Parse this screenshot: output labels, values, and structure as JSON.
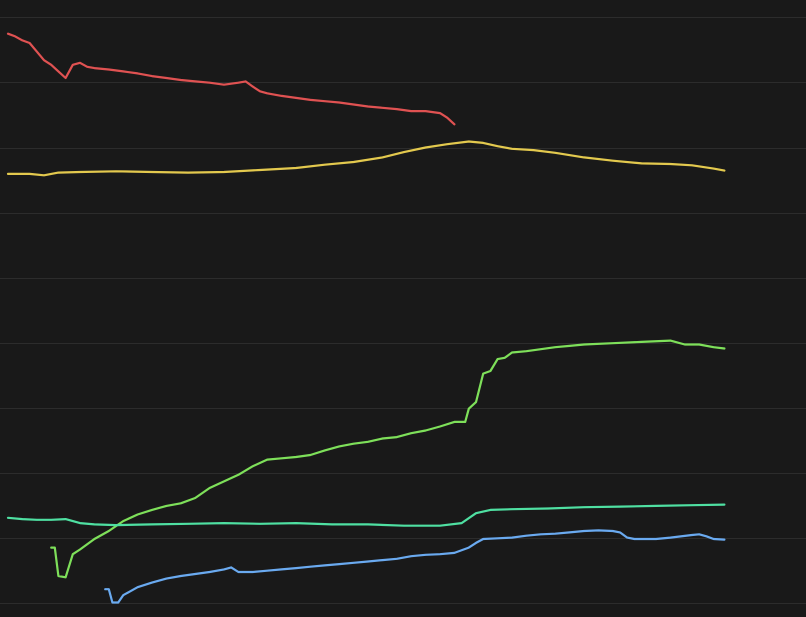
{
  "chart_data": {
    "type": "line",
    "background": "#191919",
    "grid": true,
    "grid_color": "#2c2c2c",
    "legend": false,
    "title": "",
    "xlabel": "",
    "ylabel": "",
    "xlim": [
      0,
      100
    ],
    "ylim": [
      0,
      9.3
    ],
    "series": [
      {
        "color": "#e05252",
        "points": [
          [
            0,
            8.82
          ],
          [
            1,
            8.78
          ],
          [
            2,
            8.72
          ],
          [
            3,
            8.68
          ],
          [
            4,
            8.55
          ],
          [
            5,
            8.42
          ],
          [
            6,
            8.35
          ],
          [
            7,
            8.25
          ],
          [
            8,
            8.15
          ],
          [
            9,
            8.35
          ],
          [
            10,
            8.38
          ],
          [
            11,
            8.32
          ],
          [
            12,
            8.3
          ],
          [
            14,
            8.28
          ],
          [
            16,
            8.25
          ],
          [
            18,
            8.22
          ],
          [
            20,
            8.18
          ],
          [
            22,
            8.15
          ],
          [
            24,
            8.12
          ],
          [
            26,
            8.1
          ],
          [
            28,
            8.08
          ],
          [
            30,
            8.05
          ],
          [
            32,
            8.08
          ],
          [
            33,
            8.1
          ],
          [
            34,
            8.02
          ],
          [
            35,
            7.95
          ],
          [
            36,
            7.92
          ],
          [
            38,
            7.88
          ],
          [
            40,
            7.85
          ],
          [
            42,
            7.82
          ],
          [
            44,
            7.8
          ],
          [
            46,
            7.78
          ],
          [
            48,
            7.75
          ],
          [
            50,
            7.72
          ],
          [
            52,
            7.7
          ],
          [
            54,
            7.68
          ],
          [
            56,
            7.65
          ],
          [
            58,
            7.65
          ],
          [
            60,
            7.62
          ],
          [
            61,
            7.55
          ],
          [
            62,
            7.45
          ]
        ]
      },
      {
        "color": "#e3c94e",
        "points": [
          [
            0,
            6.7
          ],
          [
            3,
            6.7
          ],
          [
            5,
            6.68
          ],
          [
            7,
            6.72
          ],
          [
            10,
            6.73
          ],
          [
            15,
            6.74
          ],
          [
            20,
            6.73
          ],
          [
            25,
            6.72
          ],
          [
            30,
            6.73
          ],
          [
            35,
            6.76
          ],
          [
            40,
            6.79
          ],
          [
            44,
            6.84
          ],
          [
            48,
            6.88
          ],
          [
            52,
            6.95
          ],
          [
            55,
            7.03
          ],
          [
            58,
            7.1
          ],
          [
            61,
            7.15
          ],
          [
            64,
            7.19
          ],
          [
            66,
            7.17
          ],
          [
            68,
            7.12
          ],
          [
            70,
            7.08
          ],
          [
            73,
            7.06
          ],
          [
            76,
            7.02
          ],
          [
            80,
            6.95
          ],
          [
            84,
            6.9
          ],
          [
            88,
            6.86
          ],
          [
            92,
            6.85
          ],
          [
            95,
            6.83
          ],
          [
            98,
            6.78
          ],
          [
            99.5,
            6.75
          ]
        ]
      },
      {
        "color": "#7ee05a",
        "points": [
          [
            6,
            1.05
          ],
          [
            6.5,
            1.05
          ],
          [
            7,
            0.62
          ],
          [
            8,
            0.6
          ],
          [
            9,
            0.95
          ],
          [
            10,
            1.02
          ],
          [
            12,
            1.18
          ],
          [
            14,
            1.3
          ],
          [
            16,
            1.45
          ],
          [
            18,
            1.55
          ],
          [
            20,
            1.62
          ],
          [
            22,
            1.68
          ],
          [
            24,
            1.72
          ],
          [
            26,
            1.8
          ],
          [
            28,
            1.95
          ],
          [
            30,
            2.05
          ],
          [
            32,
            2.15
          ],
          [
            34,
            2.28
          ],
          [
            36,
            2.38
          ],
          [
            38,
            2.4
          ],
          [
            40,
            2.42
          ],
          [
            42,
            2.45
          ],
          [
            44,
            2.52
          ],
          [
            46,
            2.58
          ],
          [
            48,
            2.62
          ],
          [
            50,
            2.65
          ],
          [
            52,
            2.7
          ],
          [
            54,
            2.72
          ],
          [
            56,
            2.78
          ],
          [
            58,
            2.82
          ],
          [
            60,
            2.88
          ],
          [
            62,
            2.95
          ],
          [
            63.5,
            2.95
          ],
          [
            64,
            3.15
          ],
          [
            65,
            3.25
          ],
          [
            66,
            3.68
          ],
          [
            67,
            3.72
          ],
          [
            68,
            3.9
          ],
          [
            69,
            3.92
          ],
          [
            70,
            4.0
          ],
          [
            72,
            4.02
          ],
          [
            74,
            4.05
          ],
          [
            76,
            4.08
          ],
          [
            78,
            4.1
          ],
          [
            80,
            4.12
          ],
          [
            84,
            4.14
          ],
          [
            88,
            4.16
          ],
          [
            92,
            4.18
          ],
          [
            94,
            4.12
          ],
          [
            96,
            4.12
          ],
          [
            98,
            4.08
          ],
          [
            99.5,
            4.06
          ]
        ]
      },
      {
        "color": "#4fe0a2",
        "points": [
          [
            0,
            1.5
          ],
          [
            2,
            1.48
          ],
          [
            4,
            1.47
          ],
          [
            6,
            1.47
          ],
          [
            8,
            1.48
          ],
          [
            9,
            1.45
          ],
          [
            10,
            1.42
          ],
          [
            12,
            1.4
          ],
          [
            15,
            1.39
          ],
          [
            20,
            1.4
          ],
          [
            25,
            1.41
          ],
          [
            30,
            1.42
          ],
          [
            35,
            1.41
          ],
          [
            40,
            1.42
          ],
          [
            45,
            1.4
          ],
          [
            50,
            1.4
          ],
          [
            55,
            1.38
          ],
          [
            60,
            1.38
          ],
          [
            63,
            1.42
          ],
          [
            65,
            1.57
          ],
          [
            67,
            1.62
          ],
          [
            70,
            1.63
          ],
          [
            75,
            1.64
          ],
          [
            80,
            1.66
          ],
          [
            85,
            1.67
          ],
          [
            90,
            1.68
          ],
          [
            95,
            1.69
          ],
          [
            99.5,
            1.7
          ]
        ]
      },
      {
        "color": "#6aaaf0",
        "points": [
          [
            13.5,
            0.42
          ],
          [
            14,
            0.42
          ],
          [
            14.5,
            0.22
          ],
          [
            15.3,
            0.22
          ],
          [
            16,
            0.33
          ],
          [
            18,
            0.45
          ],
          [
            20,
            0.52
          ],
          [
            22,
            0.58
          ],
          [
            24,
            0.62
          ],
          [
            26,
            0.65
          ],
          [
            28,
            0.68
          ],
          [
            30,
            0.72
          ],
          [
            31,
            0.75
          ],
          [
            32,
            0.68
          ],
          [
            34,
            0.68
          ],
          [
            36,
            0.7
          ],
          [
            38,
            0.72
          ],
          [
            40,
            0.74
          ],
          [
            42,
            0.76
          ],
          [
            44,
            0.78
          ],
          [
            46,
            0.8
          ],
          [
            48,
            0.82
          ],
          [
            50,
            0.84
          ],
          [
            52,
            0.86
          ],
          [
            54,
            0.88
          ],
          [
            56,
            0.92
          ],
          [
            58,
            0.94
          ],
          [
            60,
            0.95
          ],
          [
            62,
            0.97
          ],
          [
            64,
            1.05
          ],
          [
            65,
            1.12
          ],
          [
            66,
            1.18
          ],
          [
            68,
            1.19
          ],
          [
            70,
            1.2
          ],
          [
            72,
            1.23
          ],
          [
            74,
            1.25
          ],
          [
            76,
            1.26
          ],
          [
            78,
            1.28
          ],
          [
            80,
            1.3
          ],
          [
            82,
            1.31
          ],
          [
            84,
            1.3
          ],
          [
            85,
            1.28
          ],
          [
            86,
            1.2
          ],
          [
            87,
            1.18
          ],
          [
            90,
            1.18
          ],
          [
            92,
            1.2
          ],
          [
            95,
            1.24
          ],
          [
            96,
            1.25
          ],
          [
            97,
            1.22
          ],
          [
            98,
            1.18
          ],
          [
            99.5,
            1.17
          ]
        ]
      }
    ]
  }
}
